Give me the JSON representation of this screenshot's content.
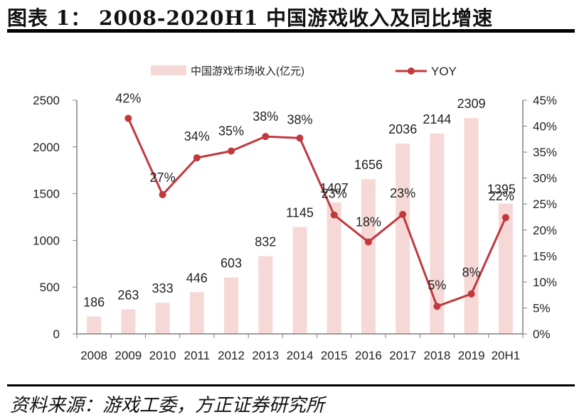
{
  "title": "图表 1： 2008-2020H1 中国游戏收入及同比增速",
  "source": "资料来源：游戏工委，方正证券研究所",
  "colors": {
    "bar": "#f6d9d7",
    "line": "#c0393d",
    "axis": "#7f7f7f",
    "text": "#222222"
  },
  "chart_data": {
    "type": "bar",
    "categories": [
      "2008",
      "2009",
      "2010",
      "2011",
      "2012",
      "2013",
      "2014",
      "2015",
      "2016",
      "2017",
      "2018",
      "2019",
      "20H1"
    ],
    "series": [
      {
        "name": "中国游戏市场收入(亿元)",
        "type": "bar",
        "axis": "left",
        "values": [
          186,
          263,
          333,
          446,
          603,
          832,
          1145,
          1407,
          1656,
          2036,
          2144,
          2309,
          1395
        ],
        "labels": [
          "186",
          "263",
          "333",
          "446",
          "603",
          "832",
          "1145",
          "1407",
          "1656",
          "2036",
          "2144",
          "2309",
          "1395"
        ]
      },
      {
        "name": "YOY",
        "type": "line",
        "axis": "right",
        "values": [
          null,
          41.5,
          26.8,
          33.9,
          35.2,
          38.0,
          37.7,
          22.9,
          17.7,
          23.0,
          5.3,
          7.7,
          22.4
        ],
        "labels": [
          "",
          "42%",
          "27%",
          "34%",
          "35%",
          "38%",
          "38%",
          "23%",
          "18%",
          "23%",
          "5%",
          "8%",
          "22%"
        ]
      }
    ],
    "y_left": {
      "min": 0,
      "max": 2500,
      "ticks": [
        "0",
        "500",
        "1000",
        "1500",
        "2000",
        "2500"
      ]
    },
    "y_right": {
      "min": 0,
      "max": 45,
      "ticks": [
        "0%",
        "5%",
        "10%",
        "15%",
        "20%",
        "25%",
        "30%",
        "35%",
        "40%",
        "45%"
      ]
    },
    "legend": {
      "position": "top"
    },
    "grid": false
  }
}
